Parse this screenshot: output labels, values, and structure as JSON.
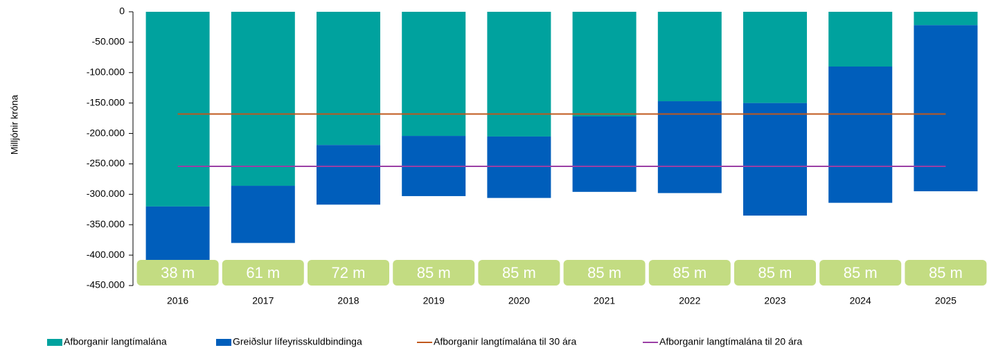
{
  "chart_data": {
    "type": "bar",
    "stacked": true,
    "y_label": "Milljónir króna",
    "categories": [
      "2016",
      "2017",
      "2018",
      "2019",
      "2020",
      "2021",
      "2022",
      "2023",
      "2024",
      "2025"
    ],
    "series": [
      {
        "name": "Afborganir langtímalána",
        "color": "#00a29e",
        "type": "bar",
        "values": [
          -320000,
          -286000,
          -219000,
          -204000,
          -205000,
          -172000,
          -147000,
          -150000,
          -90000,
          -22000
        ]
      },
      {
        "name": "Greiðslur lífeyrisskuldbindinga",
        "color": "#005ebb",
        "type": "bar",
        "values": [
          -90000,
          -94000,
          -98000,
          -99000,
          -101000,
          -124000,
          -151000,
          -185000,
          -224000,
          -273000
        ]
      },
      {
        "name": "Afborganir langtímalána til 30 ára",
        "color": "#c0581d",
        "type": "line",
        "values": [
          -168000,
          -168000,
          -168000,
          -168000,
          -168000,
          -168000,
          -168000,
          -168000,
          -168000,
          -168000
        ]
      },
      {
        "name": "Afborganir langtímalána til 20 ára",
        "color": "#9b3fa5",
        "type": "line",
        "values": [
          -254000,
          -254000,
          -254000,
          -254000,
          -254000,
          -254000,
          -254000,
          -254000,
          -254000,
          -254000
        ]
      }
    ],
    "annotations": [
      "38 m",
      "61 m",
      "72 m",
      "85 m",
      "85 m",
      "85 m",
      "85 m",
      "85 m",
      "85 m",
      "85 m"
    ],
    "ylim": [
      -450000,
      0
    ],
    "yticks": [
      0,
      {
        "value": -50000,
        "label": "-50.000"
      },
      {
        "value": -100000,
        "label": "-100.000"
      },
      {
        "value": -150000,
        "label": "-150.000"
      },
      {
        "value": -200000,
        "label": "-200.000"
      },
      {
        "value": -250000,
        "label": "-250.000"
      },
      {
        "value": -300000,
        "label": "-300.000"
      },
      {
        "value": -350000,
        "label": "-350.000"
      },
      {
        "value": -400000,
        "label": "-400.000"
      },
      {
        "value": -450000,
        "label": "-450.000"
      }
    ],
    "grid": false,
    "legend": "bottom"
  }
}
